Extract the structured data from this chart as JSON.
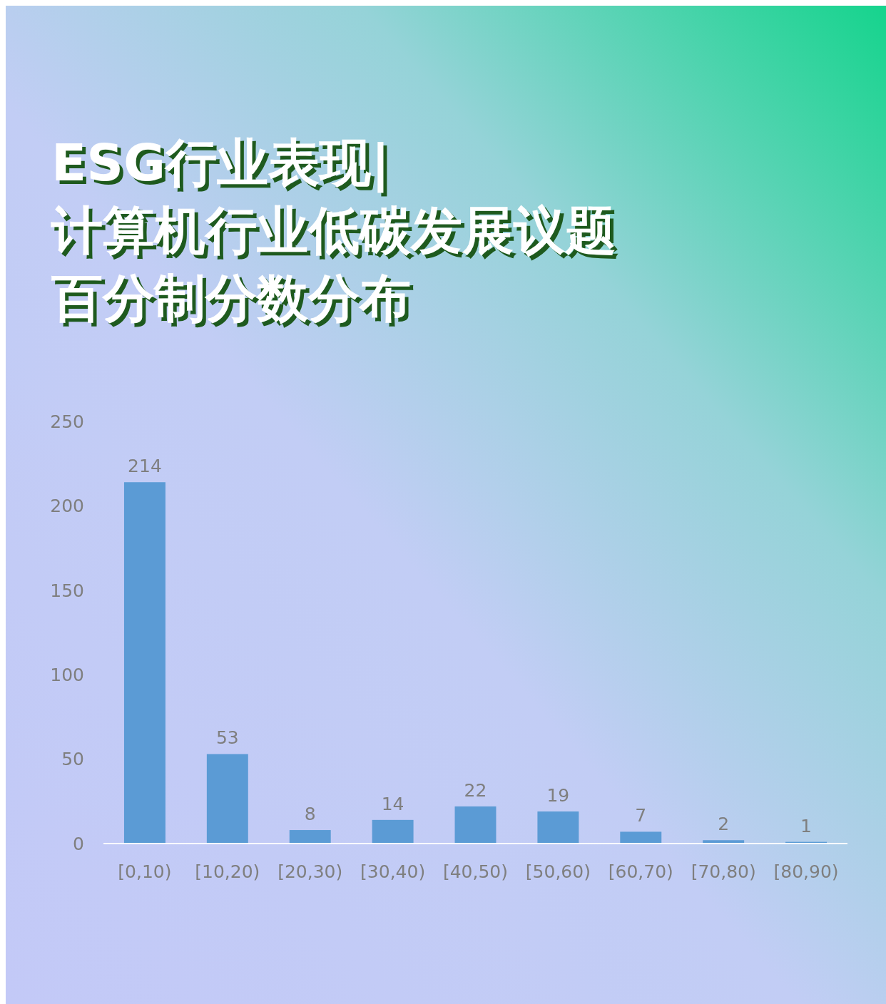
{
  "chart_data": {
    "type": "bar",
    "title": "ESG行业表现|计算机行业低碳发展议题百分制分数分布",
    "categories": [
      "[0,10)",
      "[10,20)",
      "[20,30)",
      "[30,40)",
      "[40,50)",
      "[50,60)",
      "[60,70)",
      "[70,80)",
      "[80,90)"
    ],
    "values": [
      214,
      53,
      8,
      14,
      22,
      19,
      7,
      2,
      1
    ],
    "color": "#5b9bd5",
    "ylim": [
      0,
      250
    ],
    "yticks": [
      0,
      50,
      100,
      150,
      200,
      250
    ],
    "data_labels": true,
    "grid": false
  }
}
